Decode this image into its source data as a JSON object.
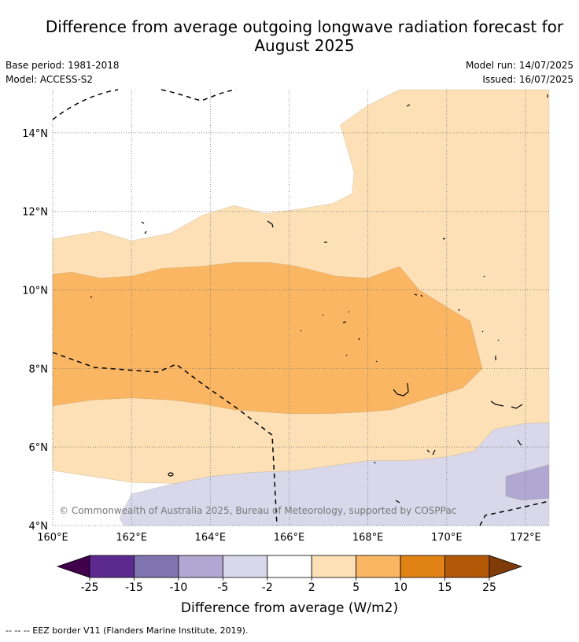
{
  "title": "Difference from average outgoing longwave radiation forecast for August 2025",
  "meta": {
    "base_period": "Base period: 1981-2018",
    "model": "Model: ACCESS-S2",
    "model_run": "Model run: 14/07/2025",
    "issued": "Issued: 16/07/2025"
  },
  "copyright": "© Commonwealth of Australia 2025, Bureau of Meteorology, supported by COSPPac",
  "footer": "-- -- -- EEZ border V11 (Flanders Marine Institute, 2019).",
  "chart_data": {
    "type": "heatmap",
    "x_ticks": [
      "160°E",
      "162°E",
      "164°E",
      "166°E",
      "168°E",
      "170°E",
      "172°E"
    ],
    "y_ticks": [
      "4°N",
      "6°N",
      "8°N",
      "10°N",
      "12°N",
      "14°N"
    ],
    "xlim": [
      160,
      172.6
    ],
    "ylim": [
      4,
      15.1
    ],
    "grid": true,
    "colorbar": {
      "label": "Difference from average (W/m2)",
      "boundaries": [
        "-25",
        "-15",
        "-10",
        "-5",
        "-2",
        "2",
        "5",
        "10",
        "15",
        "25"
      ],
      "colors": [
        "#40004b",
        "#5c2a8f",
        "#8074b0",
        "#b0a8d2",
        "#d8d8ea",
        "#ffffff",
        "#fde0b6",
        "#fbb663",
        "#e08214",
        "#b35806",
        "#7f3b08"
      ]
    },
    "regions": [
      {
        "level": "2 to 5",
        "color": "#fde0b6",
        "lonlat": [
          [
            160,
            11.3
          ],
          [
            161.2,
            11.5
          ],
          [
            162,
            11.25
          ],
          [
            163,
            11.45
          ],
          [
            163.8,
            11.9
          ],
          [
            164.6,
            12.15
          ],
          [
            165.4,
            11.95
          ],
          [
            166.2,
            12.05
          ],
          [
            167.1,
            12.2
          ],
          [
            167.6,
            12.45
          ],
          [
            167.65,
            13.0
          ],
          [
            167.3,
            14.2
          ],
          [
            168.0,
            14.7
          ],
          [
            168.8,
            15.1
          ],
          [
            172.6,
            15.1
          ],
          [
            172.6,
            6.0
          ],
          [
            171.5,
            5.5
          ],
          [
            170.7,
            5.1
          ],
          [
            169.0,
            5.2
          ],
          [
            167.7,
            5.05
          ],
          [
            166.8,
            5.05
          ],
          [
            166,
            5.05
          ],
          [
            164,
            5.05
          ],
          [
            162,
            5.1
          ],
          [
            160,
            5.4
          ]
        ]
      },
      {
        "level": "5 to 10",
        "color": "#fbb663",
        "lonlat": [
          [
            160,
            10.4
          ],
          [
            160.5,
            10.45
          ],
          [
            161.2,
            10.3
          ],
          [
            162,
            10.35
          ],
          [
            162.8,
            10.55
          ],
          [
            163.8,
            10.6
          ],
          [
            164.6,
            10.7
          ],
          [
            165.5,
            10.7
          ],
          [
            166.2,
            10.6
          ],
          [
            167.2,
            10.35
          ],
          [
            168,
            10.3
          ],
          [
            168.8,
            10.6
          ],
          [
            169.3,
            10.0
          ],
          [
            170.6,
            9.2
          ],
          [
            170.9,
            8.0
          ],
          [
            170.4,
            7.5
          ],
          [
            169.4,
            7.2
          ],
          [
            168.6,
            6.95
          ],
          [
            168.0,
            6.9
          ],
          [
            167.0,
            6.85
          ],
          [
            166.0,
            6.85
          ],
          [
            164.6,
            6.95
          ],
          [
            163.8,
            7.1
          ],
          [
            163,
            7.2
          ],
          [
            162,
            7.25
          ],
          [
            161,
            7.2
          ],
          [
            160,
            7.05
          ]
        ]
      },
      {
        "level": "-5 to -2",
        "color": "#d8d8ea",
        "lonlat": [
          [
            162,
            4.8
          ],
          [
            163,
            5.05
          ],
          [
            164,
            5.25
          ],
          [
            165,
            5.35
          ],
          [
            166.2,
            5.4
          ],
          [
            167.3,
            5.55
          ],
          [
            168.0,
            5.65
          ],
          [
            169.0,
            5.65
          ],
          [
            170.0,
            5.75
          ],
          [
            170.7,
            5.9
          ],
          [
            171.2,
            6.45
          ],
          [
            172.0,
            6.6
          ],
          [
            172.6,
            6.62
          ],
          [
            172.6,
            4.0
          ],
          [
            161.8,
            4.0
          ],
          [
            161.7,
            4.2
          ]
        ]
      },
      {
        "level": "-10 to -5",
        "color": "#b0a8d2",
        "lonlat": [
          [
            171.5,
            5.25
          ],
          [
            172.6,
            5.55
          ],
          [
            172.6,
            4.7
          ],
          [
            171.9,
            4.65
          ],
          [
            171.5,
            4.75
          ]
        ]
      }
    ]
  }
}
